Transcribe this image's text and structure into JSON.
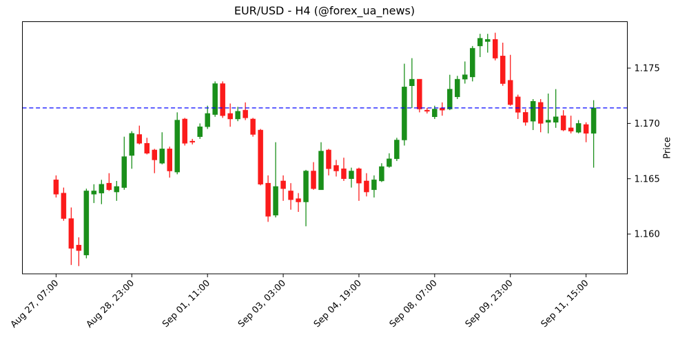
{
  "title": "EUR/USD - H4 (@forex_ua_news)",
  "axes": {
    "y_label": "Price"
  },
  "chart_data": {
    "type": "candlestick",
    "symbol": "EUR/USD",
    "timeframe": "H4",
    "source": "@forex_ua_news",
    "title": "EUR/USD - H4 (@forex_ua_news)",
    "ylabel": "Price",
    "grid": false,
    "legend": "none",
    "ylim": [
      1.1564,
      1.1792
    ],
    "xlim": [
      -4.45,
      75.45
    ],
    "y_ticks": [
      {
        "value": 1.16,
        "label": "1.160"
      },
      {
        "value": 1.165,
        "label": "1.165"
      },
      {
        "value": 1.17,
        "label": "1.170"
      },
      {
        "value": 1.175,
        "label": "1.175"
      }
    ],
    "x_ticks": [
      {
        "index": 0,
        "label": "Aug 27, 07:00"
      },
      {
        "index": 10,
        "label": "Aug 28, 23:00"
      },
      {
        "index": 20,
        "label": "Sep 01, 11:00"
      },
      {
        "index": 30,
        "label": "Sep 03, 03:00"
      },
      {
        "index": 40,
        "label": "Sep 04, 19:00"
      },
      {
        "index": 50,
        "label": "Sep 08, 07:00"
      },
      {
        "index": 60,
        "label": "Sep 09, 23:00"
      },
      {
        "index": 70,
        "label": "Sep 11, 15:00"
      }
    ],
    "reference_line": {
      "price": 1.1714,
      "color": "#0000ff",
      "style": "dashed"
    },
    "colors": {
      "up": "#1a8f1a",
      "down": "#fb1b1b",
      "axis": "#000000"
    },
    "candles_ohlc": [
      [
        1.1649,
        1.1653,
        1.1633,
        1.1636
      ],
      [
        1.1637,
        1.1642,
        1.1612,
        1.1614
      ],
      [
        1.1614,
        1.1624,
        1.1572,
        1.1587
      ],
      [
        1.159,
        1.1597,
        1.1571,
        1.1585
      ],
      [
        1.1581,
        1.1641,
        1.1578,
        1.1639
      ],
      [
        1.1636,
        1.1645,
        1.1628,
        1.1639
      ],
      [
        1.1637,
        1.1649,
        1.1627,
        1.1645
      ],
      [
        1.1646,
        1.1655,
        1.1639,
        1.164
      ],
      [
        1.1638,
        1.1648,
        1.163,
        1.1643
      ],
      [
        1.1642,
        1.1688,
        1.164,
        1.167
      ],
      [
        1.1671,
        1.1693,
        1.1659,
        1.1691
      ],
      [
        1.169,
        1.1698,
        1.1681,
        1.1682
      ],
      [
        1.1682,
        1.1687,
        1.1672,
        1.1673
      ],
      [
        1.1676,
        1.1677,
        1.1655,
        1.1667
      ],
      [
        1.1664,
        1.1692,
        1.1663,
        1.1677
      ],
      [
        1.1677,
        1.1679,
        1.1651,
        1.1657
      ],
      [
        1.1656,
        1.171,
        1.1654,
        1.1703
      ],
      [
        1.1704,
        1.1705,
        1.168,
        1.1682
      ],
      [
        1.1684,
        1.1686,
        1.1681,
        1.1683
      ],
      [
        1.1688,
        1.17,
        1.1686,
        1.1697
      ],
      [
        1.1697,
        1.1716,
        1.1695,
        1.1709
      ],
      [
        1.1708,
        1.1738,
        1.1706,
        1.1736
      ],
      [
        1.1736,
        1.1738,
        1.1705,
        1.1707
      ],
      [
        1.1709,
        1.1718,
        1.1697,
        1.1704
      ],
      [
        1.1704,
        1.1715,
        1.1702,
        1.1711
      ],
      [
        1.1712,
        1.1719,
        1.1703,
        1.1705
      ],
      [
        1.1704,
        1.1705,
        1.1688,
        1.169
      ],
      [
        1.1694,
        1.1695,
        1.1644,
        1.1645
      ],
      [
        1.1646,
        1.1653,
        1.1611,
        1.1616
      ],
      [
        1.1617,
        1.1683,
        1.1615,
        1.1643
      ],
      [
        1.1648,
        1.1653,
        1.163,
        1.1641
      ],
      [
        1.1639,
        1.1646,
        1.1622,
        1.1631
      ],
      [
        1.1632,
        1.1637,
        1.162,
        1.1629
      ],
      [
        1.1629,
        1.1658,
        1.1607,
        1.1657
      ],
      [
        1.1657,
        1.1665,
        1.164,
        1.1641
      ],
      [
        1.164,
        1.1683,
        1.164,
        1.1675
      ],
      [
        1.1676,
        1.1677,
        1.1653,
        1.1659
      ],
      [
        1.1662,
        1.1667,
        1.1652,
        1.1657
      ],
      [
        1.1659,
        1.1669,
        1.1648,
        1.165
      ],
      [
        1.165,
        1.166,
        1.1642,
        1.1657
      ],
      [
        1.1659,
        1.166,
        1.163,
        1.1646
      ],
      [
        1.1648,
        1.1655,
        1.1634,
        1.1638
      ],
      [
        1.164,
        1.1653,
        1.1633,
        1.1649
      ],
      [
        1.1648,
        1.1664,
        1.1647,
        1.1661
      ],
      [
        1.1661,
        1.1673,
        1.166,
        1.1668
      ],
      [
        1.1668,
        1.1687,
        1.1666,
        1.1685
      ],
      [
        1.1685,
        1.1754,
        1.168,
        1.1733
      ],
      [
        1.1734,
        1.1759,
        1.1714,
        1.174
      ],
      [
        1.174,
        1.174,
        1.171,
        1.1713
      ],
      [
        1.1712,
        1.1714,
        1.1709,
        1.1711
      ],
      [
        1.1706,
        1.1716,
        1.1704,
        1.1713
      ],
      [
        1.1714,
        1.1719,
        1.1707,
        1.1712
      ],
      [
        1.1713,
        1.1744,
        1.1712,
        1.1731
      ],
      [
        1.1724,
        1.1743,
        1.1722,
        1.174
      ],
      [
        1.174,
        1.1756,
        1.1736,
        1.1744
      ],
      [
        1.1742,
        1.177,
        1.1738,
        1.1768
      ],
      [
        1.177,
        1.1781,
        1.176,
        1.1777
      ],
      [
        1.1774,
        1.1781,
        1.1764,
        1.1776
      ],
      [
        1.1776,
        1.1782,
        1.1757,
        1.1759
      ],
      [
        1.1761,
        1.1773,
        1.1734,
        1.1736
      ],
      [
        1.1739,
        1.1762,
        1.1716,
        1.1717
      ],
      [
        1.1724,
        1.1726,
        1.1704,
        1.171
      ],
      [
        1.171,
        1.1713,
        1.1698,
        1.1701
      ],
      [
        1.1702,
        1.1722,
        1.1694,
        1.172
      ],
      [
        1.1719,
        1.1722,
        1.1692,
        1.17
      ],
      [
        1.1701,
        1.1727,
        1.1691,
        1.1703
      ],
      [
        1.1701,
        1.1731,
        1.1696,
        1.1706
      ],
      [
        1.1707,
        1.1712,
        1.1693,
        1.1694
      ],
      [
        1.1696,
        1.1707,
        1.1691,
        1.1693
      ],
      [
        1.1692,
        1.1703,
        1.1691,
        1.17
      ],
      [
        1.1699,
        1.1701,
        1.1683,
        1.1691
      ],
      [
        1.1691,
        1.1721,
        1.166,
        1.1714
      ]
    ]
  }
}
